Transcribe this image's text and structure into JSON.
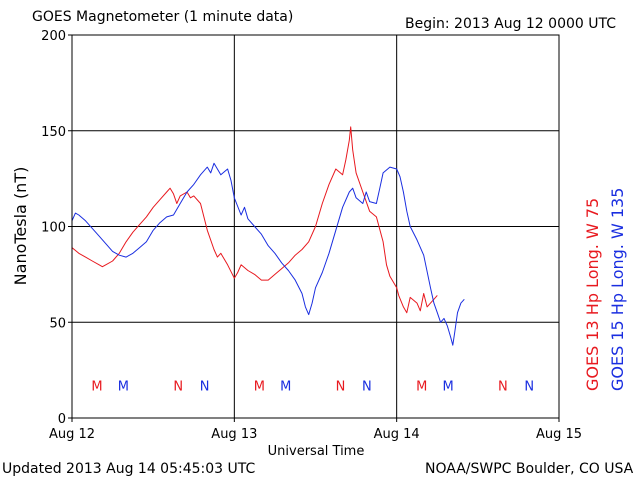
{
  "header": {
    "title": "GOES Magnetometer (1 minute data)",
    "begin": "Begin:  2013 Aug 12 0000 UTC"
  },
  "footer": {
    "updated": "Updated 2013 Aug 14 05:45:03 UTC",
    "source": "NOAA/SWPC Boulder, CO USA"
  },
  "chart_data": {
    "type": "line",
    "ylabel": "NanoTesla (nT)",
    "xlabel": "Universal Time",
    "ylim": [
      0,
      200
    ],
    "yticks": [
      0,
      50,
      100,
      150,
      200
    ],
    "xlim": [
      0,
      72
    ],
    "xticks": [
      {
        "hour": 0,
        "label": "Aug 12"
      },
      {
        "hour": 24,
        "label": "Aug 13"
      },
      {
        "hour": 48,
        "label": "Aug 14"
      },
      {
        "hour": 72,
        "label": "Aug 15"
      }
    ],
    "grid": true,
    "colors": {
      "red": "#e8191f",
      "blue": "#1a2ee0"
    },
    "series": [
      {
        "name": "GOES 13 Hp  Long. W 75",
        "color": "#e8191f",
        "points": [
          [
            0,
            89
          ],
          [
            1,
            86
          ],
          [
            2,
            84
          ],
          [
            3,
            82
          ],
          [
            4,
            80
          ],
          [
            4.5,
            79
          ],
          [
            5,
            80
          ],
          [
            6,
            82
          ],
          [
            7,
            86
          ],
          [
            8,
            92
          ],
          [
            9,
            97
          ],
          [
            10,
            101
          ],
          [
            11,
            105
          ],
          [
            12,
            110
          ],
          [
            13,
            114
          ],
          [
            14,
            118
          ],
          [
            14.5,
            120
          ],
          [
            15,
            117
          ],
          [
            15.5,
            112
          ],
          [
            16,
            116
          ],
          [
            17,
            118
          ],
          [
            17.5,
            115
          ],
          [
            18,
            116
          ],
          [
            19,
            112
          ],
          [
            19.5,
            105
          ],
          [
            20,
            98
          ],
          [
            21,
            88
          ],
          [
            21.5,
            84
          ],
          [
            22,
            86
          ],
          [
            23,
            80
          ],
          [
            24,
            73
          ],
          [
            24.5,
            76
          ],
          [
            25,
            80
          ],
          [
            26,
            77
          ],
          [
            27,
            75
          ],
          [
            28,
            72
          ],
          [
            29,
            72
          ],
          [
            30,
            75
          ],
          [
            31,
            78
          ],
          [
            32,
            81
          ],
          [
            33,
            85
          ],
          [
            34,
            88
          ],
          [
            35,
            92
          ],
          [
            36,
            100
          ],
          [
            37,
            112
          ],
          [
            38,
            122
          ],
          [
            39,
            130
          ],
          [
            40,
            127
          ],
          [
            40.5,
            135
          ],
          [
            41,
            145
          ],
          [
            41.2,
            152
          ],
          [
            41.5,
            140
          ],
          [
            42,
            128
          ],
          [
            43,
            118
          ],
          [
            43.5,
            113
          ],
          [
            44,
            108
          ],
          [
            45,
            105
          ],
          [
            46,
            92
          ],
          [
            46.5,
            80
          ],
          [
            47,
            74
          ],
          [
            48,
            68
          ],
          [
            48.3,
            64
          ],
          [
            49,
            58
          ],
          [
            49.5,
            55
          ],
          [
            50,
            63
          ],
          [
            51,
            60
          ],
          [
            51.5,
            56
          ],
          [
            52,
            65
          ],
          [
            52.5,
            58
          ],
          [
            53,
            60
          ],
          [
            53.5,
            62
          ],
          [
            54,
            64
          ]
        ]
      },
      {
        "name": "GOES 15 Hp  Long. W 135",
        "color": "#1a2ee0",
        "points": [
          [
            0,
            103
          ],
          [
            0.5,
            107
          ],
          [
            1,
            106
          ],
          [
            2,
            103
          ],
          [
            3,
            99
          ],
          [
            4,
            95
          ],
          [
            5,
            91
          ],
          [
            6,
            87
          ],
          [
            7,
            85
          ],
          [
            8,
            84
          ],
          [
            9,
            86
          ],
          [
            10,
            89
          ],
          [
            11,
            92
          ],
          [
            12,
            98
          ],
          [
            13,
            102
          ],
          [
            14,
            105
          ],
          [
            15,
            106
          ],
          [
            16,
            112
          ],
          [
            17,
            118
          ],
          [
            18,
            122
          ],
          [
            19,
            127
          ],
          [
            20,
            131
          ],
          [
            20.5,
            128
          ],
          [
            21,
            133
          ],
          [
            21.5,
            130
          ],
          [
            22,
            127
          ],
          [
            23,
            130
          ],
          [
            23.5,
            124
          ],
          [
            24,
            115
          ],
          [
            25,
            106
          ],
          [
            25.5,
            110
          ],
          [
            26,
            104
          ],
          [
            27,
            100
          ],
          [
            28,
            96
          ],
          [
            29,
            90
          ],
          [
            30,
            86
          ],
          [
            31,
            81
          ],
          [
            32,
            77
          ],
          [
            33,
            72
          ],
          [
            34,
            65
          ],
          [
            34.5,
            58
          ],
          [
            35,
            54
          ],
          [
            35.5,
            60
          ],
          [
            36,
            68
          ],
          [
            37,
            76
          ],
          [
            38,
            86
          ],
          [
            39,
            98
          ],
          [
            40,
            110
          ],
          [
            41,
            118
          ],
          [
            41.5,
            120
          ],
          [
            42,
            115
          ],
          [
            43,
            112
          ],
          [
            43.5,
            118
          ],
          [
            44,
            113
          ],
          [
            45,
            112
          ],
          [
            45.5,
            120
          ],
          [
            46,
            128
          ],
          [
            47,
            131
          ],
          [
            48,
            130
          ],
          [
            48.5,
            126
          ],
          [
            49,
            118
          ],
          [
            49.5,
            108
          ],
          [
            50,
            100
          ],
          [
            51,
            93
          ],
          [
            52,
            85
          ],
          [
            53,
            68
          ],
          [
            53.5,
            60
          ],
          [
            54,
            55
          ],
          [
            54.5,
            50
          ],
          [
            55,
            52
          ],
          [
            55.5,
            48
          ],
          [
            56,
            42
          ],
          [
            56.3,
            38
          ],
          [
            56.6,
            45
          ],
          [
            57,
            55
          ],
          [
            57.5,
            60
          ],
          [
            58,
            62
          ]
        ]
      }
    ],
    "markers": {
      "row_value": 17,
      "items": [
        {
          "label": "M",
          "hour": 3.7,
          "color": "#e8191f"
        },
        {
          "label": "M",
          "hour": 7.6,
          "color": "#1a2ee0"
        },
        {
          "label": "N",
          "hour": 15.7,
          "color": "#e8191f"
        },
        {
          "label": "N",
          "hour": 19.6,
          "color": "#1a2ee0"
        },
        {
          "label": "M",
          "hour": 27.7,
          "color": "#e8191f"
        },
        {
          "label": "M",
          "hour": 31.6,
          "color": "#1a2ee0"
        },
        {
          "label": "N",
          "hour": 39.7,
          "color": "#e8191f"
        },
        {
          "label": "N",
          "hour": 43.6,
          "color": "#1a2ee0"
        },
        {
          "label": "M",
          "hour": 51.7,
          "color": "#e8191f"
        },
        {
          "label": "M",
          "hour": 55.6,
          "color": "#1a2ee0"
        },
        {
          "label": "N",
          "hour": 63.7,
          "color": "#e8191f"
        },
        {
          "label": "N",
          "hour": 67.6,
          "color": "#1a2ee0"
        }
      ]
    }
  }
}
